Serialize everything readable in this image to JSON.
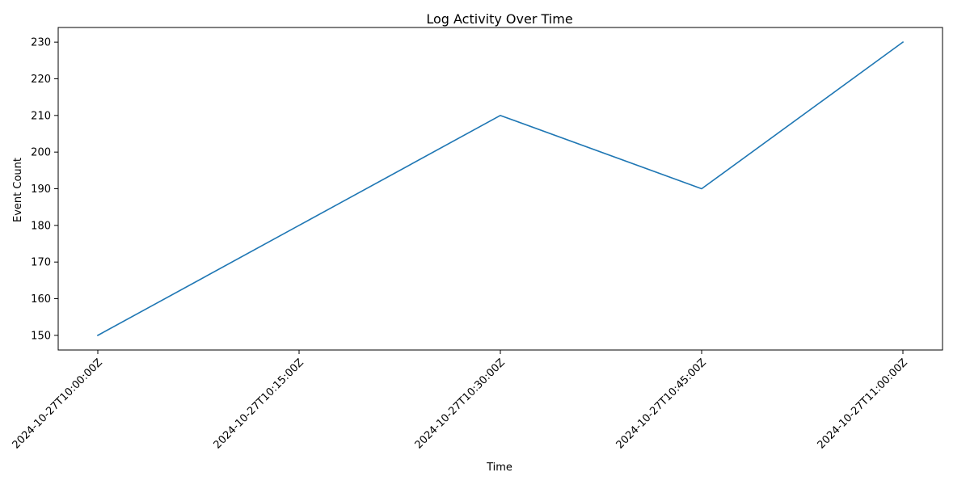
{
  "colors": {
    "line": "#1f77b4",
    "axis": "#000000",
    "background": "#ffffff"
  },
  "chart_data": {
    "type": "line",
    "title": "Log Activity Over Time",
    "xlabel": "Time",
    "ylabel": "Event Count",
    "x": [
      "2024-10-27T10:00:00Z",
      "2024-10-27T10:15:00Z",
      "2024-10-27T10:30:00Z",
      "2024-10-27T10:45:00Z",
      "2024-10-27T11:00:00Z"
    ],
    "series": [
      {
        "values": [
          150,
          180,
          210,
          190,
          230
        ]
      }
    ],
    "yticks": [
      150,
      160,
      170,
      180,
      190,
      200,
      210,
      220,
      230
    ],
    "ylim": [
      146,
      234
    ],
    "grid": false,
    "legend": "none",
    "xtick_rotation_deg": 45
  }
}
